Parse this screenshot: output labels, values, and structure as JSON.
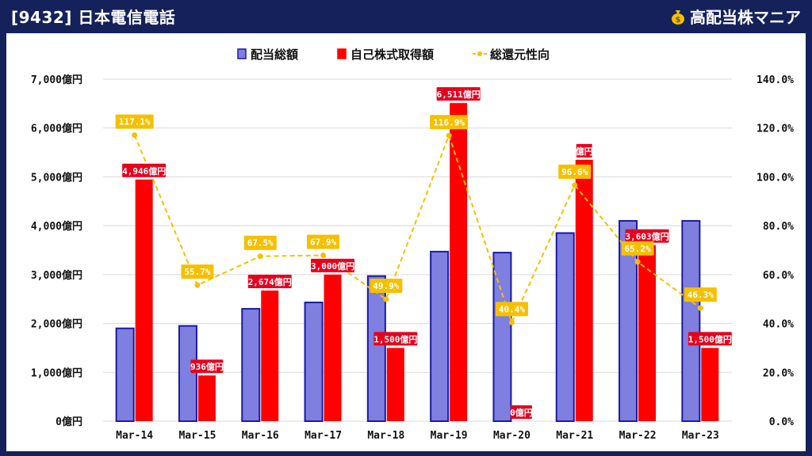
{
  "header": {
    "title": "[9432] 日本電信電話",
    "brand": "高配当株マニア",
    "brand_icon": "money-bag-icon"
  },
  "colors": {
    "background": "#14215a",
    "dividend": "#7f7fdf",
    "dividend_border": "#1a1aa8",
    "buyback": "#ff0000",
    "ratio_line": "#f5c000",
    "label_red": "#e8001c",
    "label_ratio": "#f5c000"
  },
  "chart_data": {
    "type": "bar",
    "categories": [
      "Mar-14",
      "Mar-15",
      "Mar-16",
      "Mar-17",
      "Mar-18",
      "Mar-19",
      "Mar-20",
      "Mar-21",
      "Mar-22",
      "Mar-23"
    ],
    "series": [
      {
        "name": "配当総額",
        "kind": "bar",
        "axis": "left",
        "values": [
          1900,
          1950,
          2300,
          2430,
          2970,
          3470,
          3450,
          3850,
          4100,
          4100
        ]
      },
      {
        "name": "自己株式取得額",
        "kind": "bar",
        "axis": "left",
        "values": [
          4946,
          936,
          2674,
          3000,
          1500,
          6511,
          0,
          5350,
          3603,
          1500
        ],
        "data_labels": [
          "4,946億円",
          "936億円",
          "2,674億円",
          "3,000億円",
          "1,500億円",
          "6,511億円",
          "0億円",
          "億円",
          "3,603億円",
          "1,500億円"
        ]
      },
      {
        "name": "総還元性向",
        "kind": "line",
        "axis": "right",
        "values": [
          117.1,
          55.7,
          67.5,
          67.9,
          49.9,
          116.9,
          40.4,
          96.6,
          65.2,
          46.3
        ],
        "data_labels": [
          "117.1%",
          "55.7%",
          "67.5%",
          "67.9%",
          "49.9%",
          "116.9%",
          "40.4%",
          "96.6%",
          "65.2%",
          "46.3%"
        ]
      }
    ],
    "ylim": [
      0,
      7000
    ],
    "y2lim": [
      0,
      140
    ],
    "y_ticks": [
      "0億円",
      "1,000億円",
      "2,000億円",
      "3,000億円",
      "4,000億円",
      "5,000億円",
      "6,000億円",
      "7,000億円"
    ],
    "y2_ticks": [
      "0.0%",
      "20.0%",
      "40.0%",
      "60.0%",
      "80.0%",
      "100.0%",
      "120.0%",
      "140.0%"
    ],
    "grid": true,
    "legend_position": "top-center"
  }
}
